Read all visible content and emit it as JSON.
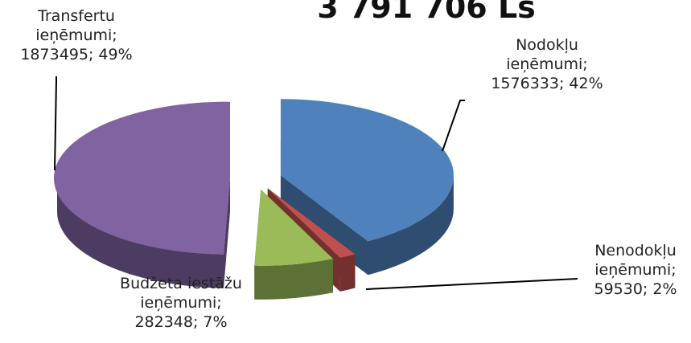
{
  "chart_data": {
    "type": "pie3d",
    "title": "3 791 706 Ls",
    "categories": [
      "Nodokļu ieņēmumi;",
      "Nenodokļu ieņēmumi;",
      "Budžeta iestāžu ieņēmumi;",
      "Transfertu ieņēmumi;"
    ],
    "values": [
      1576333,
      59530,
      282348,
      1873495
    ],
    "value_labels": [
      "1576333; 42%",
      "59530; 2%",
      "282348; 7%",
      "1873495; 49%"
    ],
    "colors": [
      "#4f81bd",
      "#c0504d",
      "#9bbb59",
      "#8064a2"
    ]
  }
}
